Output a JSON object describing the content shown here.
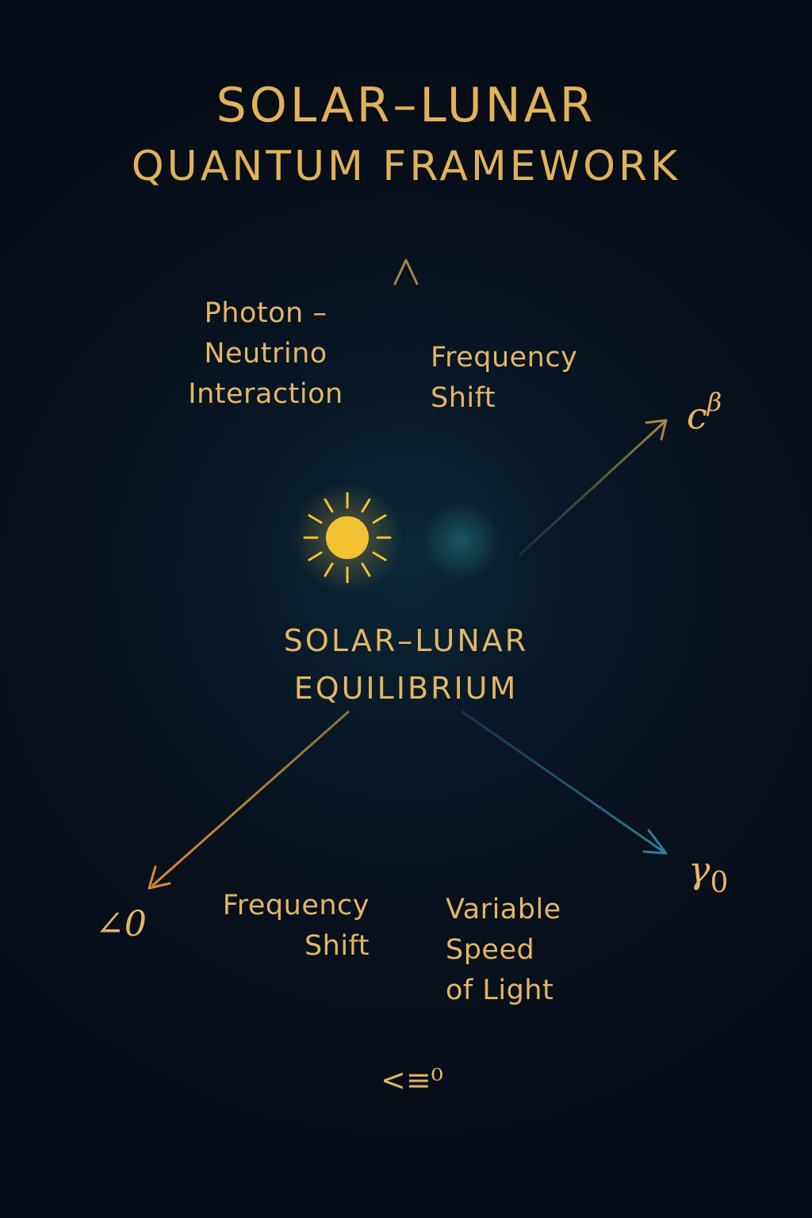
{
  "title": {
    "line1": "SOLAR–LUNAR",
    "line2": "QUANTUM FRAMEWORK"
  },
  "center": {
    "line1": "SOLAR–LUNAR",
    "line2": "EQUILIBRIUM"
  },
  "labels": {
    "photon": [
      "Photon –",
      "Neutrino",
      "Interaction"
    ],
    "frequency_top": [
      "Frequency",
      "Shift"
    ],
    "frequency_bottom": [
      "Frequency",
      "Shift"
    ],
    "variable_speed": [
      "Variable",
      "Speed",
      "of Light"
    ]
  },
  "symbols": {
    "c_beta_base": "c",
    "c_beta_sup": "β",
    "gamma_base": "γ",
    "gamma_sub": "0",
    "angle": "∠0",
    "bottom": "<≡⁰"
  },
  "icons": {
    "sun": "sun-icon",
    "moon": "crescent-moon-icon"
  },
  "colors": {
    "background": "#070d17",
    "gold": "#e1b25a",
    "sun": "#f2c232",
    "moon": "#3ab8cc",
    "teal_arrow": "#1e6a86",
    "orange_arrow": "#d88a35"
  }
}
